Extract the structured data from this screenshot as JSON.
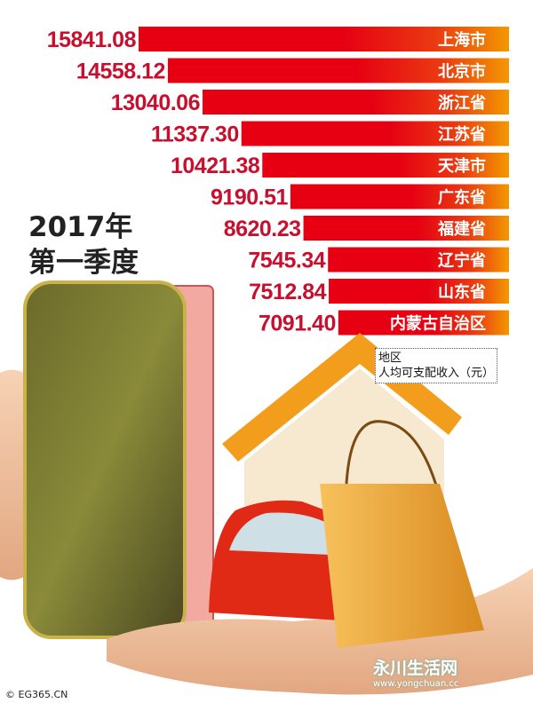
{
  "chart_data": {
    "type": "bar",
    "orientation": "horizontal",
    "title": "2017年 第一季度",
    "categories": [
      "上海市",
      "北京市",
      "浙江省",
      "江苏省",
      "天津市",
      "广东省",
      "福建省",
      "辽宁省",
      "山东省",
      "内蒙古自治区"
    ],
    "values": [
      15841.08,
      14558.12,
      13040.06,
      11337.3,
      10421.38,
      9190.51,
      8620.23,
      7545.34,
      7512.84,
      7091.4
    ],
    "value_labels": [
      "15841.08",
      "14558.12",
      "13040.06",
      "11337.30",
      "10421.38",
      "9190.51",
      "8620.23",
      "7545.34",
      "7512.84",
      "7091.40"
    ],
    "legend": {
      "line1": "地区",
      "line2": "人均可支配收入（元）"
    },
    "colors": {
      "bar_main": "#e60012",
      "bar_end": "#f39800",
      "value_text": "#c8102e"
    },
    "grid": false
  },
  "period": {
    "year": "2017年",
    "quarter": "第一季度"
  },
  "watermarks": {
    "left": "© EG365.CN",
    "right_title": "永川生活网",
    "right_url": "www.yongchuan.cc"
  }
}
